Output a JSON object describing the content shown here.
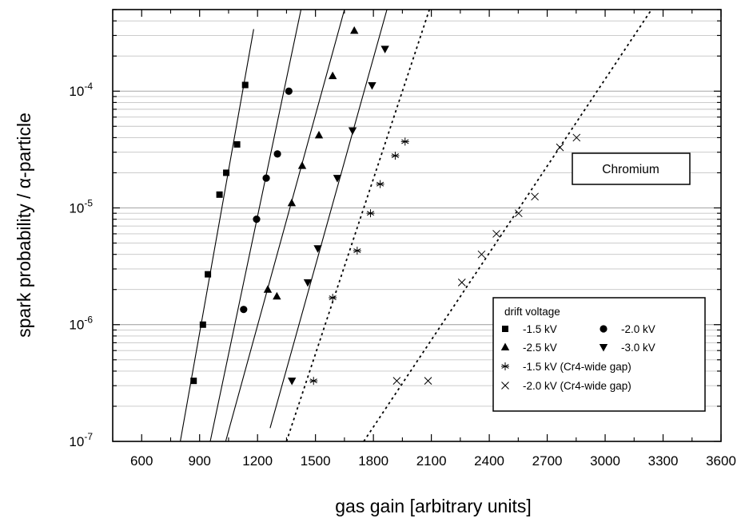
{
  "chart_data": {
    "type": "scatter",
    "title": "",
    "xlabel": "gas gain [arbitrary units]",
    "ylabel": "spark probability / α-particle",
    "xlim": [
      450,
      3600
    ],
    "ylim_log": [
      1e-07,
      0.0005
    ],
    "y_scale": "log",
    "grid": "horizontal minor and major gridlines",
    "x_ticks": [
      600,
      900,
      1200,
      1500,
      1800,
      2100,
      2400,
      2700,
      3000,
      3300,
      3600
    ],
    "x_tick_labels": [
      "600",
      "900",
      "1200",
      "1500",
      "1800",
      "2100",
      "2400",
      "2700",
      "3000",
      "3300",
      "3600"
    ],
    "y_ticks": [
      {
        "value": 1e-07,
        "base": "10",
        "exp": "-7"
      },
      {
        "value": 1e-06,
        "base": "10",
        "exp": "-6"
      },
      {
        "value": 1e-05,
        "base": "10",
        "exp": "-5"
      },
      {
        "value": 0.0001,
        "base": "10",
        "exp": "-4"
      }
    ],
    "annotation": "Chromium",
    "legend": {
      "title": "drift voltage",
      "position": "bottom-right",
      "entries": [
        {
          "label": "-1.5 kV",
          "marker": "square"
        },
        {
          "label": "-2.0 kV",
          "marker": "circle"
        },
        {
          "label": "-2.5 kV",
          "marker": "triangle-up"
        },
        {
          "label": "-3.0 kV",
          "marker": "triangle-down"
        },
        {
          "label": "-1.5 kV (Cr4-wide gap)",
          "marker": "asterisk"
        },
        {
          "label": "-2.0 kV (Cr4-wide gap)",
          "marker": "cross"
        }
      ]
    },
    "series": [
      {
        "name": "-1.5 kV",
        "marker": "square",
        "points": [
          [
            869,
            3.3e-07
          ],
          [
            917,
            1e-06
          ],
          [
            943,
            2.7e-06
          ],
          [
            1003,
            1.3e-05
          ],
          [
            1038,
            2e-05
          ],
          [
            1094,
            3.5e-05
          ],
          [
            1136,
            0.000113
          ]
        ],
        "fit": [
          [
            800,
            1e-07
          ],
          [
            1180,
            0.00034
          ]
        ],
        "fit_style": "solid"
      },
      {
        "name": "-2.0 kV",
        "marker": "circle",
        "points": [
          [
            1128,
            1.35e-06
          ],
          [
            1195,
            8e-06
          ],
          [
            1245,
            1.8e-05
          ],
          [
            1303,
            2.9e-05
          ],
          [
            1362,
            0.0001
          ]
        ],
        "fit": [
          [
            955,
            1e-07
          ],
          [
            1425,
            0.0005
          ]
        ],
        "fit_style": "solid"
      },
      {
        "name": "-2.5 kV",
        "marker": "triangle-up",
        "points": [
          [
            1253,
            2e-06
          ],
          [
            1300,
            1.75e-06
          ],
          [
            1377,
            1.1e-05
          ],
          [
            1431,
            2.3e-05
          ],
          [
            1518,
            4.2e-05
          ],
          [
            1589,
            0.000135
          ],
          [
            1701,
            0.00033
          ]
        ],
        "fit": [
          [
            1035,
            1e-07
          ],
          [
            1650,
            0.0005
          ]
        ],
        "fit_style": "solid"
      },
      {
        "name": "-3.0 kV",
        "marker": "triangle-down",
        "points": [
          [
            1378,
            3.3e-07
          ],
          [
            1460,
            2.3e-06
          ],
          [
            1512,
            4.5e-06
          ],
          [
            1613,
            1.8e-05
          ],
          [
            1692,
            4.6e-05
          ],
          [
            1793,
            0.000112
          ],
          [
            1860,
            0.00023
          ]
        ],
        "fit": [
          [
            1265,
            1.3e-07
          ],
          [
            1870,
            0.0005
          ]
        ],
        "fit_style": "solid"
      },
      {
        "name": "-1.5 kV (Cr4-wide gap)",
        "marker": "asterisk",
        "points": [
          [
            1490,
            3.3e-07
          ],
          [
            1589,
            1.7e-06
          ],
          [
            1716,
            4.3e-06
          ],
          [
            1785,
            9e-06
          ],
          [
            1835,
            1.6e-05
          ],
          [
            1913,
            2.8e-05
          ],
          [
            1964,
            3.7e-05
          ]
        ],
        "fit": [
          [
            1350,
            1e-07
          ],
          [
            2090,
            0.0005
          ]
        ],
        "fit_style": "dotted"
      },
      {
        "name": "-2.0 kV (Cr4-wide gap)",
        "marker": "cross",
        "points": [
          [
            1921,
            3.3e-07
          ],
          [
            2083,
            3.3e-07
          ],
          [
            2258,
            2.3e-06
          ],
          [
            2360,
            4e-06
          ],
          [
            2437,
            6e-06
          ],
          [
            2552,
            9e-06
          ],
          [
            2636,
            1.25e-05
          ],
          [
            2766,
            3.3e-05
          ],
          [
            2852,
            4e-05
          ]
        ],
        "fit": [
          [
            1750,
            1e-07
          ],
          [
            3240,
            0.0005
          ]
        ],
        "fit_style": "dotted"
      }
    ]
  }
}
